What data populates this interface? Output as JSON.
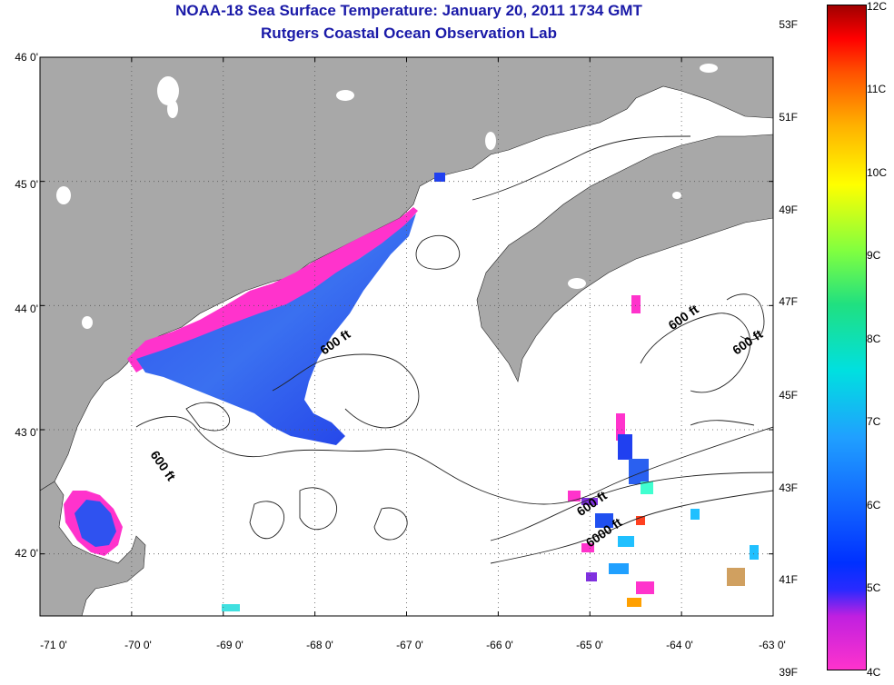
{
  "title": {
    "line1": "NOAA-18 Sea Surface Temperature:  January 20, 2011 1734 GMT",
    "line2": "Rutgers Coastal Ocean Observation Lab"
  },
  "axes": {
    "latitude_ticks": [
      "46 0'",
      "45 0'",
      "44 0'",
      "43 0'",
      "42 0'"
    ],
    "latitude_values": [
      46,
      45,
      44,
      43,
      42
    ],
    "longitude_ticks": [
      "-71 0'",
      "-70 0'",
      "-69 0'",
      "-68 0'",
      "-67 0'",
      "-66 0'",
      "-65 0'",
      "-64 0'",
      "-63 0'"
    ],
    "longitude_values": [
      -71,
      -70,
      -69,
      -68,
      -67,
      -66,
      -65,
      -64,
      -63
    ],
    "lat_range": [
      41.5,
      46.0
    ],
    "lon_range": [
      -71.0,
      -63.0
    ],
    "grid": "dotted"
  },
  "contour_labels": [
    {
      "text": "600 ft",
      "lon": -67.9,
      "lat": 43.6
    },
    {
      "text": "600 ft",
      "lon": -69.8,
      "lat": 42.8
    },
    {
      "text": "600 ft",
      "lon": -64.1,
      "lat": 43.8
    },
    {
      "text": "600 ft",
      "lon": -63.4,
      "lat": 43.6
    },
    {
      "text": "600 ft",
      "lon": -65.1,
      "lat": 42.3
    },
    {
      "text": "6000 ft",
      "lon": -65.0,
      "lat": 42.05
    }
  ],
  "colorbar": {
    "fahrenheit_ticks": [
      "53F",
      "51F",
      "49F",
      "47F",
      "45F",
      "43F",
      "41F",
      "39F"
    ],
    "fahrenheit_values": [
      53,
      51,
      49,
      47,
      45,
      43,
      41,
      39
    ],
    "celsius_ticks": [
      "12C",
      "11C",
      "10C",
      "9C",
      "8C",
      "7C",
      "6C",
      "5C",
      "4C"
    ],
    "celsius_values": [
      12,
      11,
      10,
      9,
      8,
      7,
      6,
      5,
      4
    ],
    "range_c": [
      4,
      12
    ]
  },
  "colors": {
    "title": "#1a1aa8",
    "land": "#a8a8a8",
    "water": "#ffffff",
    "cold_edge": "#ff33cc",
    "cold_mass": "#2040f0"
  }
}
